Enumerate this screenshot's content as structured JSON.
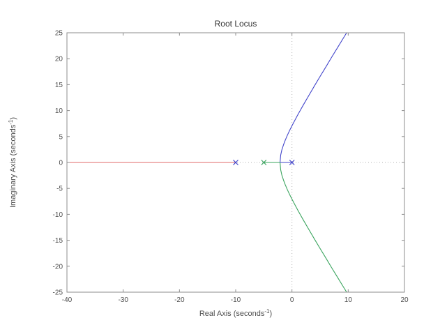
{
  "chart_data": {
    "type": "line",
    "title": "Root Locus",
    "xlabel": {
      "text": "Real Axis (seconds",
      "sup": "-1",
      "suffix": ")"
    },
    "ylabel": {
      "text": "Imaginary Axis (seconds",
      "sup": "-1",
      "suffix": ")"
    },
    "xlim": [
      -40,
      20
    ],
    "ylim": [
      -25,
      25
    ],
    "xticks": [
      -40,
      -30,
      -20,
      -10,
      0,
      10,
      20
    ],
    "yticks": [
      -25,
      -20,
      -15,
      -10,
      -5,
      0,
      5,
      10,
      15,
      20,
      25
    ],
    "grid": false,
    "legend": "none",
    "reference_lines": [
      {
        "axis": "vertical",
        "value": 0
      },
      {
        "axis": "horizontal",
        "value": 0
      }
    ],
    "colors": {
      "red_branch": "#e06a6a",
      "blue_branch": "#4245cb",
      "green_branch": "#3aa45e",
      "reference": "#b3b3b3",
      "axis_box": "#8c8c8c",
      "tick_label": "#4d4d4d"
    },
    "series": [
      {
        "name": "branch-to-negative-infinity",
        "color": "#e06a6a",
        "points": [
          [
            -40,
            0
          ],
          [
            -10,
            0
          ]
        ]
      },
      {
        "name": "real-axis-branch-from-minus5",
        "color": "#3aa45e",
        "points": [
          [
            -5,
            0
          ],
          [
            -2.11,
            0
          ]
        ]
      },
      {
        "name": "real-axis-branch-from-zero",
        "color": "#4245cb",
        "points": [
          [
            -2.11,
            0
          ],
          [
            0,
            0
          ]
        ]
      },
      {
        "name": "upper-complex-branch",
        "color": "#4245cb",
        "points": [
          [
            -2.11,
            0
          ],
          [
            -2.0,
            1.41
          ],
          [
            -1.8,
            2.39
          ],
          [
            -1.5,
            3.43
          ],
          [
            -1.2,
            4.28
          ],
          [
            -0.8,
            5.28
          ],
          [
            -0.4,
            6.2
          ],
          [
            0,
            7.07
          ],
          [
            0.5,
            8.11
          ],
          [
            1,
            9.11
          ],
          [
            1.5,
            10.09
          ],
          [
            2,
            11.05
          ],
          [
            3,
            12.92
          ],
          [
            4,
            14.76
          ],
          [
            5,
            16.58
          ],
          [
            6,
            18.38
          ],
          [
            7,
            20.17
          ],
          [
            8,
            21.95
          ],
          [
            9,
            23.73
          ],
          [
            9.72,
            25
          ]
        ]
      },
      {
        "name": "lower-complex-branch",
        "color": "#3aa45e",
        "points": [
          [
            -2.11,
            0
          ],
          [
            -2.0,
            -1.41
          ],
          [
            -1.8,
            -2.39
          ],
          [
            -1.5,
            -3.43
          ],
          [
            -1.2,
            -4.28
          ],
          [
            -0.8,
            -5.28
          ],
          [
            -0.4,
            -6.2
          ],
          [
            0,
            -7.07
          ],
          [
            0.5,
            -8.11
          ],
          [
            1,
            -9.11
          ],
          [
            1.5,
            -10.09
          ],
          [
            2,
            -11.05
          ],
          [
            3,
            -12.92
          ],
          [
            4,
            -14.76
          ],
          [
            5,
            -16.58
          ],
          [
            6,
            -18.38
          ],
          [
            7,
            -20.17
          ],
          [
            8,
            -21.95
          ],
          [
            9,
            -23.73
          ],
          [
            9.72,
            -25
          ]
        ]
      }
    ],
    "poles": [
      {
        "x": -10,
        "y": 0,
        "color": "#4245cb"
      },
      {
        "x": -5,
        "y": 0,
        "color": "#3aa45e"
      },
      {
        "x": 0,
        "y": 0,
        "color": "#4245cb"
      }
    ]
  }
}
